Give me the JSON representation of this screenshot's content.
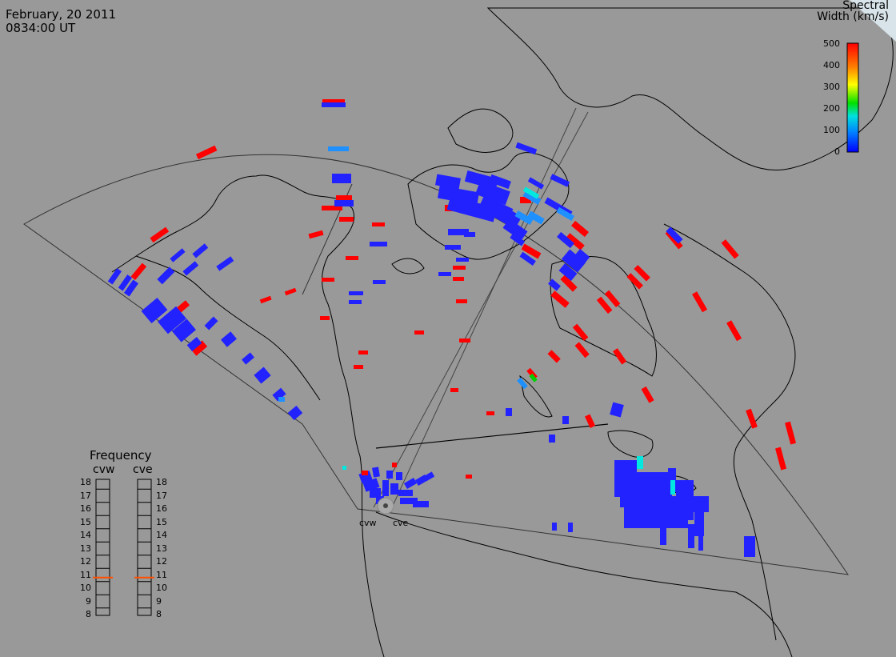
{
  "header": {
    "date": "February, 20 2011",
    "time": "0834:00 UT"
  },
  "legend": {
    "title_line1": "Spectral",
    "title_line2": "Width (km/s)",
    "ticks": [
      "500",
      "400",
      "300",
      "200",
      "100",
      "0"
    ],
    "tick_values": [
      500,
      400,
      300,
      200,
      100,
      0
    ],
    "colormap": [
      "#0000ff",
      "#0080ff",
      "#00e0e0",
      "#00e000",
      "#ffff00",
      "#ff8000",
      "#ff0000"
    ]
  },
  "frequency": {
    "title": "Frequency",
    "sites": [
      "cvw",
      "cve"
    ],
    "labels": [
      "18",
      "17",
      "16",
      "15",
      "14",
      "13",
      "12",
      "11",
      "10",
      "9",
      "8"
    ],
    "selected_mhz": [
      10.8,
      10.8
    ],
    "marker_color": "#ff5000"
  },
  "radars": [
    "cvw",
    "cve"
  ],
  "colors": {
    "background": "#999999",
    "scatter_high": "#ff0000",
    "scatter_low": "#2222ff",
    "scatter_mid": "#1e90ff"
  }
}
